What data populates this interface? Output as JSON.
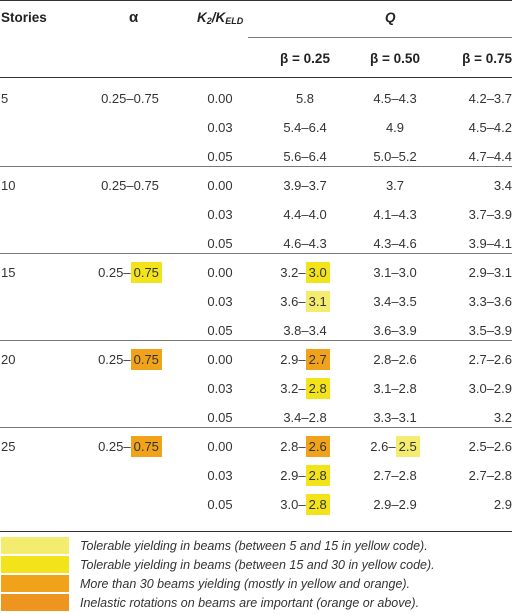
{
  "header": {
    "stories": "Stories",
    "alpha": "α",
    "k_main": "K",
    "k_sub2": "2",
    "k_slash": "/K",
    "k_subeld": "ELD",
    "q": "Q",
    "beta1": "β = 0.25",
    "beta2": "β = 0.50",
    "beta3": "β = 0.75"
  },
  "groups": [
    {
      "stories": "5",
      "alpha_pre": "0.25–0.75",
      "alpha_hl": "",
      "alpha_color": "",
      "rows": [
        {
          "k": "0.00",
          "b1": [
            "5.8",
            "",
            ""
          ],
          "b2": [
            "4.5–4.3",
            "",
            ""
          ],
          "b3": "4.2–3.7"
        },
        {
          "k": "0.03",
          "b1": [
            "5.4–6.4",
            "",
            ""
          ],
          "b2": [
            "4.9",
            "",
            ""
          ],
          "b3": "4.5–4.2"
        },
        {
          "k": "0.05",
          "b1": [
            "5.6–6.4",
            "",
            ""
          ],
          "b2": [
            "5.0–5.2",
            "",
            ""
          ],
          "b3": "4.7–4.4"
        }
      ]
    },
    {
      "stories": "10",
      "alpha_pre": "0.25–0.75",
      "alpha_hl": "",
      "alpha_color": "",
      "rows": [
        {
          "k": "0.00",
          "b1": [
            "3.9–3.7",
            "",
            ""
          ],
          "b2": [
            "3.7",
            "",
            ""
          ],
          "b3": "3.4"
        },
        {
          "k": "0.03",
          "b1": [
            "4.4–4.0",
            "",
            ""
          ],
          "b2": [
            "4.1–4.3",
            "",
            ""
          ],
          "b3": "3.7–3.9"
        },
        {
          "k": "0.05",
          "b1": [
            "4.6–4.3",
            "",
            ""
          ],
          "b2": [
            "4.3–4.6",
            "",
            ""
          ],
          "b3": "3.9–4.1"
        }
      ]
    },
    {
      "stories": "15",
      "alpha_pre": "0.25–",
      "alpha_hl": "0.75",
      "alpha_color": "#f2e31a",
      "rows": [
        {
          "k": "0.00",
          "b1": [
            "3.2–",
            "3.0",
            "#f2e31a"
          ],
          "b2": [
            "3.1–3.0",
            "",
            ""
          ],
          "b3": "2.9–3.1"
        },
        {
          "k": "0.03",
          "b1": [
            "3.6–",
            "3.1",
            "#f3ec6f"
          ],
          "b2": [
            "3.4–3.5",
            "",
            ""
          ],
          "b3": "3.3–3.6"
        },
        {
          "k": "0.05",
          "b1": [
            "3.8–3.4",
            "",
            ""
          ],
          "b2": [
            "3.6–3.9",
            "",
            ""
          ],
          "b3": "3.5–3.9"
        }
      ]
    },
    {
      "stories": "20",
      "alpha_pre": "0.25–",
      "alpha_hl": "0.75",
      "alpha_color": "#f0a31a",
      "rows": [
        {
          "k": "0.00",
          "b1": [
            "2.9–",
            "2.7",
            "#f0a31a"
          ],
          "b2": [
            "2.8–2.6",
            "",
            ""
          ],
          "b3": "2.7–2.6"
        },
        {
          "k": "0.03",
          "b1": [
            "3.2–",
            "2.8",
            "#f2e31a"
          ],
          "b2": [
            "3.1–2.8",
            "",
            ""
          ],
          "b3": "3.0–2.9"
        },
        {
          "k": "0.05",
          "b1": [
            "3.4–2.8",
            "",
            ""
          ],
          "b2": [
            "3.3–3.1",
            "",
            ""
          ],
          "b3": "3.2"
        }
      ]
    },
    {
      "stories": "25",
      "alpha_pre": "0.25–",
      "alpha_hl": "0.75",
      "alpha_color": "#f0a31a",
      "rows": [
        {
          "k": "0.00",
          "b1": [
            "2.8–",
            "2.6",
            "#f0a31a"
          ],
          "b2": [
            "2.6–",
            "2.5",
            "#f3ec6f"
          ],
          "b3": "2.5–2.6"
        },
        {
          "k": "0.03",
          "b1": [
            "2.9–",
            "2.8",
            "#f2e31a"
          ],
          "b2": [
            "2.7–2.8",
            "",
            ""
          ],
          "b3": "2.7–2.8"
        },
        {
          "k": "0.05",
          "b1": [
            "3.0–",
            "2.8",
            "#f2e31a"
          ],
          "b2": [
            "2.9–2.9",
            "",
            ""
          ],
          "b3": "2.9"
        }
      ]
    }
  ],
  "legend": [
    {
      "color": "#f3ec6f",
      "text": "Tolerable yielding in beams (between 5 and 15 in yellow code)."
    },
    {
      "color": "#f2e31a",
      "text": "Tolerable yielding in beams (between 15 and 30 in yellow code)."
    },
    {
      "color": "#f0a31a",
      "text": "More than 30 beams yielding (mostly in yellow and orange)."
    },
    {
      "color": "#ee9520",
      "text": "Inelastic rotations on beams are important (orange or above)."
    }
  ]
}
